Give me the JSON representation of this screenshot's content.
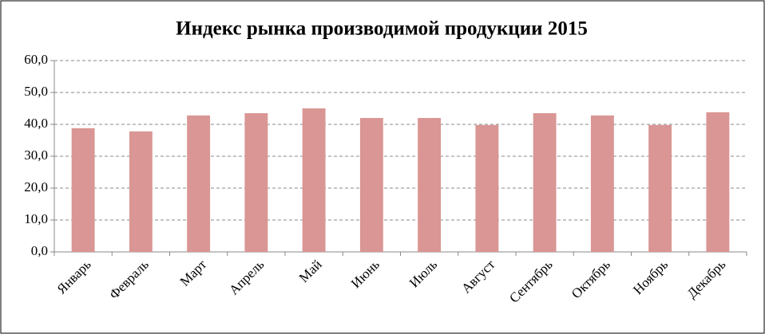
{
  "chart_data": {
    "type": "bar",
    "title": "Индекс рынка производимой продукции 2015",
    "categories": [
      "Январь",
      "Февраль",
      "Март",
      "Апрель",
      "Май",
      "Июнь",
      "Июль",
      "Август",
      "Сентябрь",
      "Октябрь",
      "Ноябрь",
      "Декабрь"
    ],
    "values": [
      38.8,
      37.8,
      42.8,
      43.5,
      45.0,
      42.0,
      42.0,
      39.8,
      43.5,
      42.8,
      39.8,
      43.8
    ],
    "color": "#d99694",
    "ylim": [
      0,
      60
    ],
    "yticks": [
      {
        "value": 0,
        "label": "0,0"
      },
      {
        "value": 10,
        "label": "10,0"
      },
      {
        "value": 20,
        "label": "20,0"
      },
      {
        "value": 30,
        "label": "30,0"
      },
      {
        "value": 40,
        "label": "40,0"
      },
      {
        "value": 50,
        "label": "50,0"
      },
      {
        "value": 60,
        "label": "60,0"
      }
    ],
    "grid": true
  }
}
